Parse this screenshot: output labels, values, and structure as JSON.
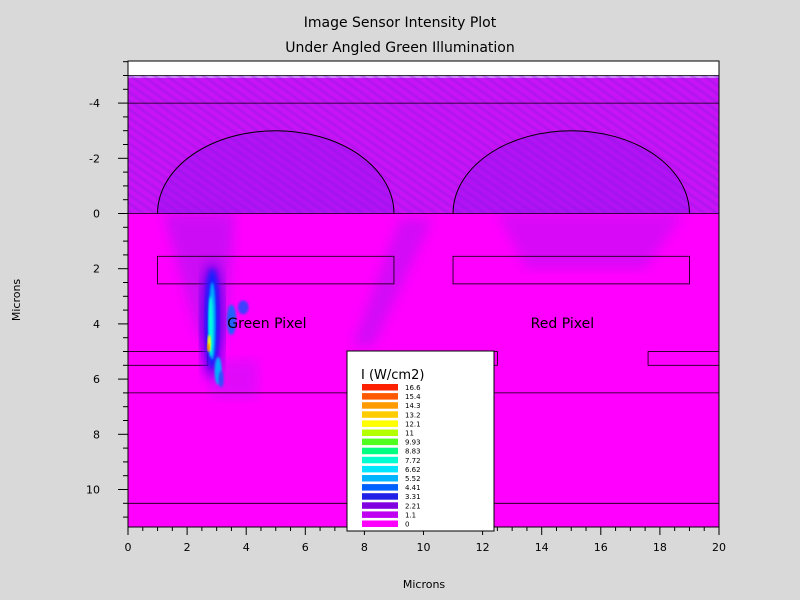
{
  "chart_data": {
    "type": "heatmap",
    "title": "Image Sensor Intensity Plot",
    "subtitle": "Under Angled Green Illumination",
    "xlabel": "Microns",
    "ylabel": "Microns",
    "xlim": [
      0,
      20
    ],
    "ylim": [
      -5.5,
      11.3
    ],
    "y_inverted": true,
    "x_ticks": [
      0,
      2,
      4,
      6,
      8,
      10,
      12,
      14,
      16,
      18,
      20
    ],
    "y_ticks": [
      -4,
      -2,
      0,
      2,
      4,
      6,
      8,
      10
    ],
    "background_intensity_color": "#ff00ff",
    "annotations": [
      {
        "text": "Green Pixel",
        "x": 4.7,
        "y": 4.0
      },
      {
        "text": "Red Pixel",
        "x": 14.7,
        "y": 4.0
      }
    ],
    "legend": {
      "title": "I (W/cm2)",
      "placement": "bottom-center",
      "levels": [
        "16.6",
        "15.4",
        "14.3",
        "13.2",
        "12.1",
        "11",
        "9.93",
        "8.83",
        "7.72",
        "6.62",
        "5.52",
        "4.41",
        "3.31",
        "2.21",
        "1.1",
        "0"
      ],
      "colors": [
        "#ff2000",
        "#ff5a00",
        "#ff9a00",
        "#ffcc00",
        "#ffff00",
        "#b4ff00",
        "#50ff20",
        "#00ff80",
        "#00ffd0",
        "#00e6ff",
        "#00b4ff",
        "#0060ff",
        "#2020e6",
        "#8000e0",
        "#c000f0",
        "#ff00ff"
      ]
    },
    "hotspot": {
      "x_range": [
        2.3,
        3.6
      ],
      "y_range": [
        2.0,
        6.2
      ],
      "peak": 16.6
    },
    "structures": {
      "lenses": [
        {
          "center_x": 5,
          "radius": 4,
          "base_y": 0
        },
        {
          "center_x": 15,
          "radius": 4,
          "base_y": 0
        }
      ],
      "filters": [
        {
          "x": [
            1,
            9
          ],
          "y": [
            1.55,
            2.55
          ]
        },
        {
          "x": [
            11,
            19
          ],
          "y": [
            1.55,
            2.55
          ]
        }
      ],
      "metal_segments": [
        {
          "x": [
            0,
            2.7
          ],
          "y": [
            5.0,
            5.5
          ]
        },
        {
          "x": [
            12.2,
            12.5
          ],
          "y": [
            5.0,
            5.5
          ]
        },
        {
          "x": [
            17.6,
            20
          ],
          "y": [
            5.0,
            5.5
          ]
        }
      ],
      "layer_lines_y": [
        -5.0,
        -4.0,
        0,
        6.5,
        10.5
      ]
    }
  }
}
